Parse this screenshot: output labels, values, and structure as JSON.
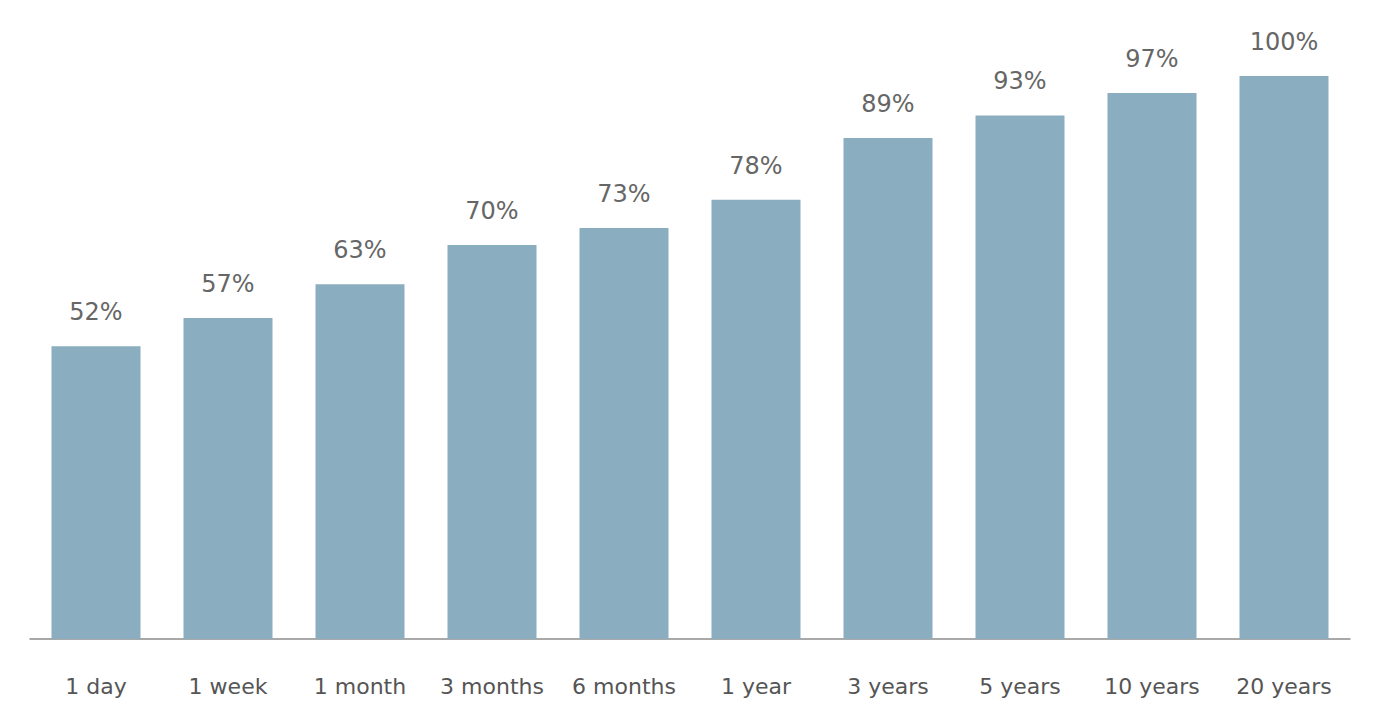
{
  "chart_data": {
    "type": "bar",
    "categories": [
      "1 day",
      "1 week",
      "1 month",
      "3 months",
      "6 months",
      "1 year",
      "3 years",
      "5 years",
      "10 years",
      "20 years"
    ],
    "values": [
      52,
      57,
      63,
      70,
      73,
      78,
      89,
      93,
      97,
      100
    ],
    "value_labels": [
      "52%",
      "57%",
      "63%",
      "70%",
      "73%",
      "78%",
      "89%",
      "93%",
      "97%",
      "100%"
    ],
    "color": "#8aaebf",
    "ylim": [
      0,
      100
    ],
    "grid": false,
    "data_labels": true,
    "tick_labels": "x"
  }
}
